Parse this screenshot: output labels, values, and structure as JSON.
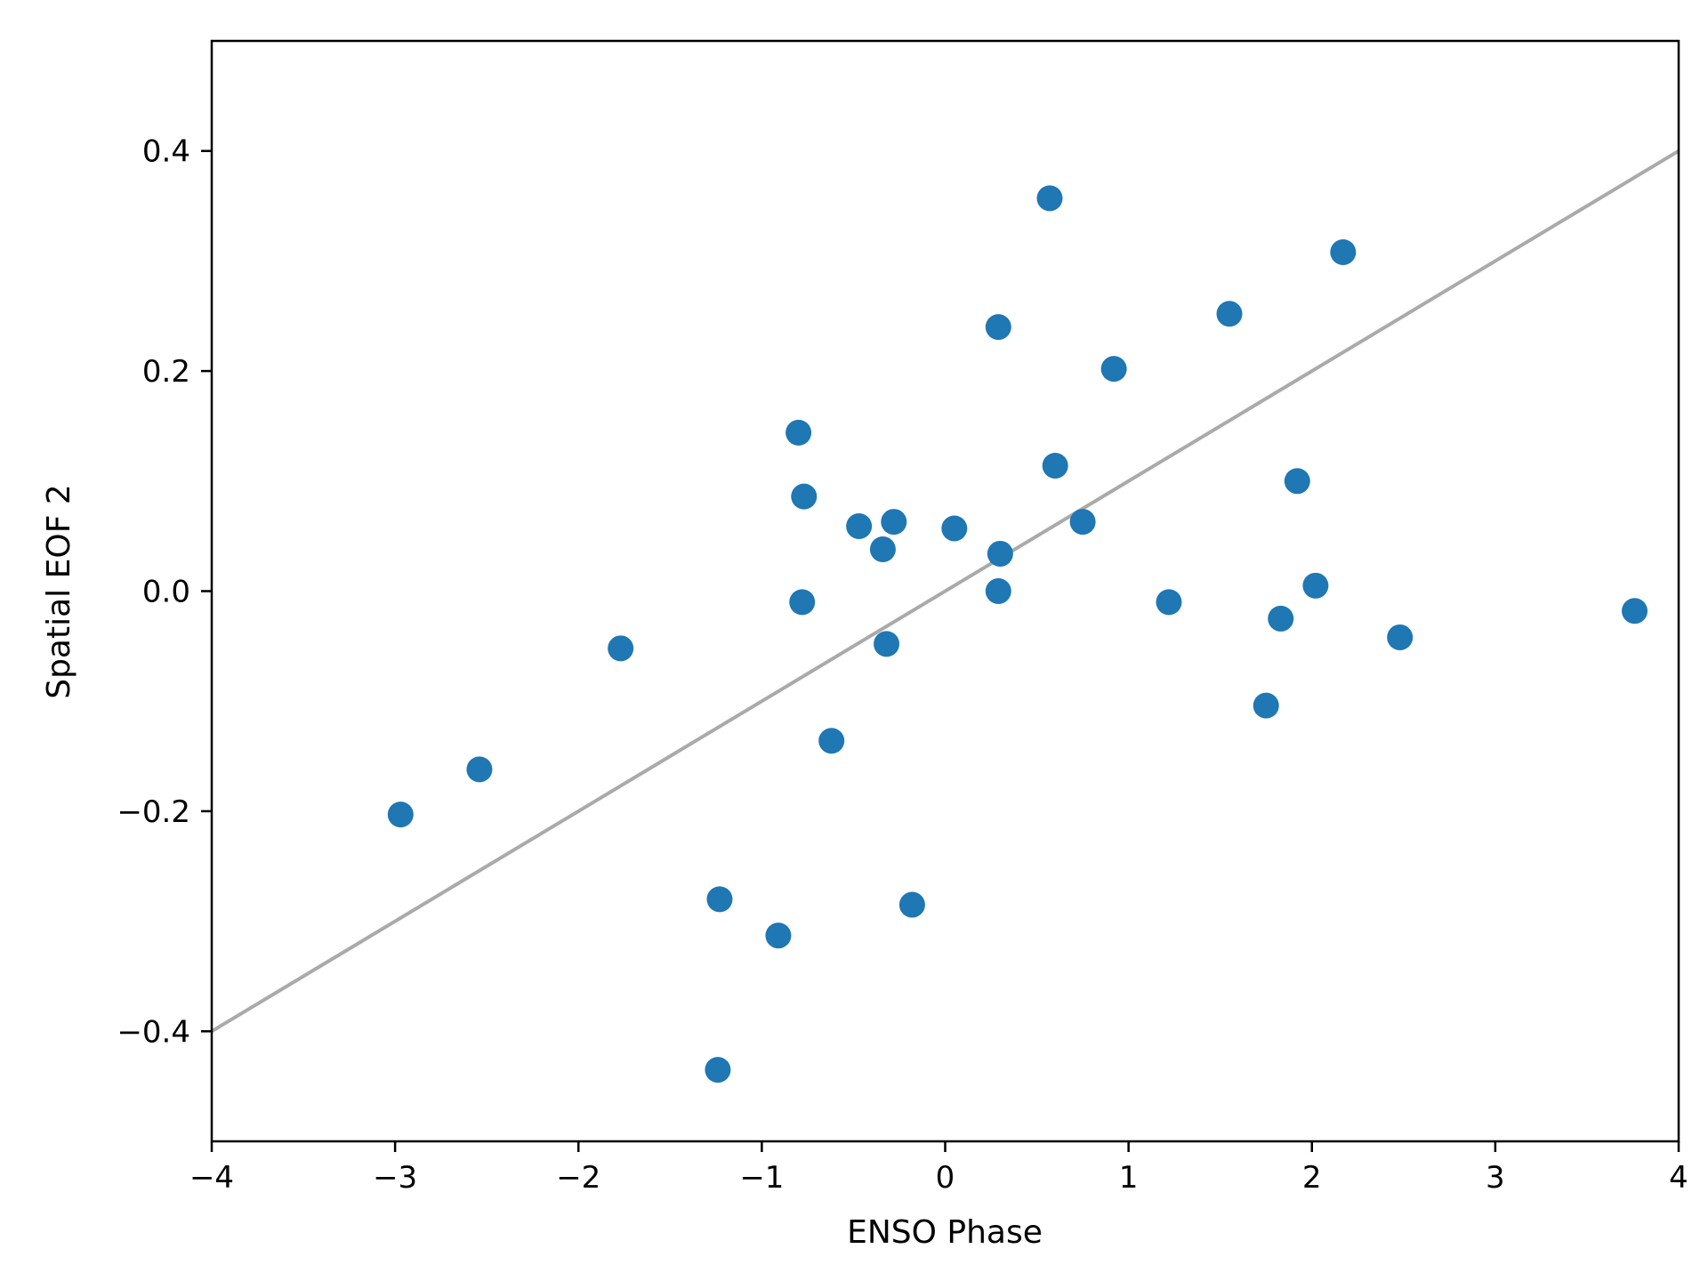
{
  "chart_data": {
    "type": "scatter",
    "title": "",
    "xlabel": "ENSO Phase",
    "ylabel": "Spatial EOF 2",
    "xlim": [
      -4,
      4
    ],
    "ylim": [
      -0.5,
      0.5
    ],
    "xticks": [
      -4,
      -3,
      -2,
      -1,
      0,
      1,
      2,
      3,
      4
    ],
    "xtick_labels": [
      "−4",
      "−3",
      "−2",
      "−1",
      "0",
      "1",
      "2",
      "3",
      "4"
    ],
    "yticks": [
      -0.4,
      -0.2,
      0.0,
      0.2,
      0.4
    ],
    "ytick_labels": [
      "−0.4",
      "−0.2",
      "0.0",
      "0.2",
      "0.4"
    ],
    "grid": false,
    "marker_color": "#1f77b4",
    "points": [
      {
        "x": -2.97,
        "y": -0.203
      },
      {
        "x": -2.54,
        "y": -0.162
      },
      {
        "x": -1.77,
        "y": -0.052
      },
      {
        "x": -1.24,
        "y": -0.435
      },
      {
        "x": -1.23,
        "y": -0.28
      },
      {
        "x": -0.91,
        "y": -0.313
      },
      {
        "x": -0.8,
        "y": 0.144
      },
      {
        "x": -0.77,
        "y": 0.086
      },
      {
        "x": -0.78,
        "y": -0.01
      },
      {
        "x": -0.62,
        "y": -0.136
      },
      {
        "x": -0.47,
        "y": 0.059
      },
      {
        "x": -0.34,
        "y": 0.038
      },
      {
        "x": -0.32,
        "y": -0.048
      },
      {
        "x": -0.28,
        "y": 0.063
      },
      {
        "x": -0.18,
        "y": -0.285
      },
      {
        "x": 0.05,
        "y": 0.057
      },
      {
        "x": 0.29,
        "y": 0.24
      },
      {
        "x": 0.29,
        "y": 0.0
      },
      {
        "x": 0.3,
        "y": 0.034
      },
      {
        "x": 0.57,
        "y": 0.357
      },
      {
        "x": 0.6,
        "y": 0.114
      },
      {
        "x": 0.75,
        "y": 0.063
      },
      {
        "x": 0.92,
        "y": 0.202
      },
      {
        "x": 1.22,
        "y": -0.01
      },
      {
        "x": 1.55,
        "y": 0.252
      },
      {
        "x": 1.75,
        "y": -0.104
      },
      {
        "x": 1.83,
        "y": -0.025
      },
      {
        "x": 1.92,
        "y": 0.1
      },
      {
        "x": 2.02,
        "y": 0.005
      },
      {
        "x": 2.17,
        "y": 0.308
      },
      {
        "x": 2.48,
        "y": -0.042
      },
      {
        "x": 3.76,
        "y": -0.018
      }
    ],
    "trend_line": {
      "color": "#aaaaaa",
      "start": {
        "x": -4,
        "y": -0.4
      },
      "end": {
        "x": 4,
        "y": 0.4
      }
    }
  }
}
